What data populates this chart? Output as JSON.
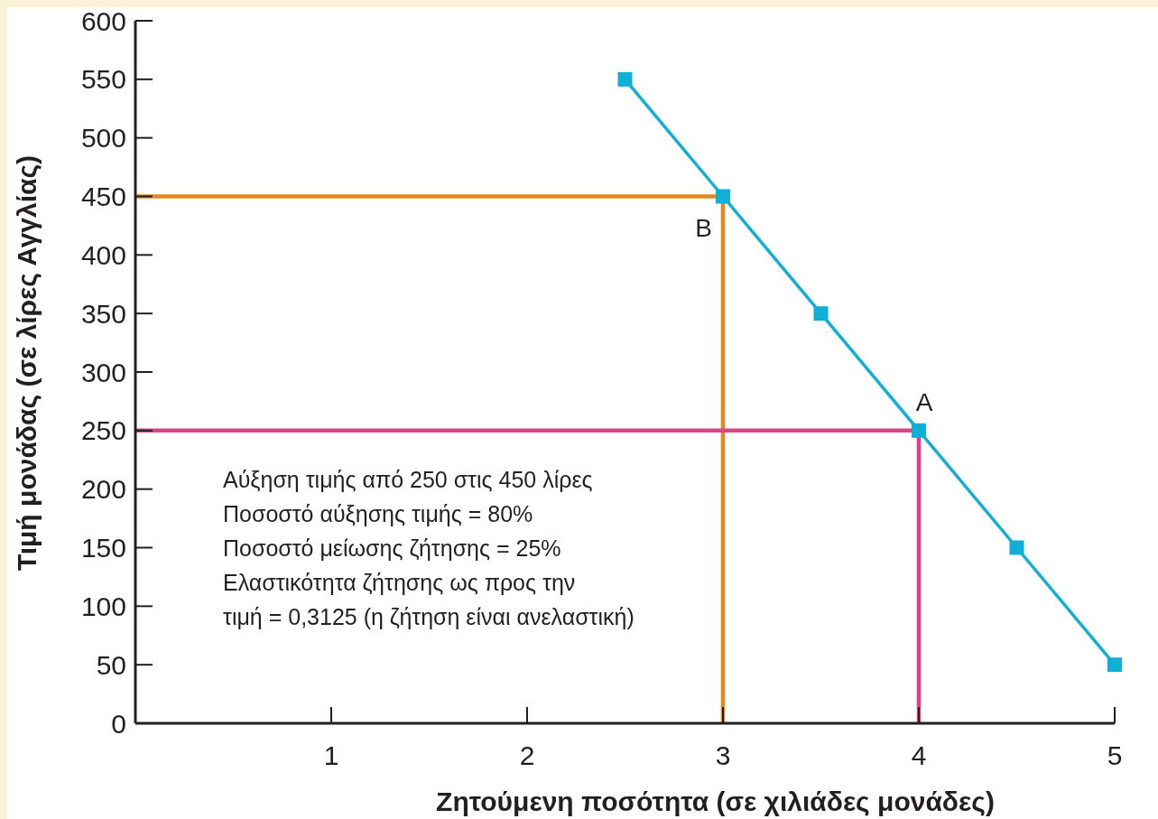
{
  "chart_data": {
    "type": "line",
    "xlabel": "Ζητούμενη ποσότητα (σε χιλιάδες μονάδες)",
    "ylabel": "Τιμή μονάδας (σε λίρες Αγγλίας)",
    "xlim": [
      0,
      5
    ],
    "ylim": [
      0,
      600
    ],
    "xticks": [
      1,
      2,
      3,
      4,
      5
    ],
    "yticks": [
      0,
      50,
      100,
      150,
      200,
      250,
      300,
      350,
      400,
      450,
      500,
      550,
      600
    ],
    "grid": false,
    "series": [
      {
        "x": [
          0,
          3,
          3
        ],
        "values": [
          450,
          450,
          0
        ],
        "color": "#e38a1e",
        "marker": "none"
      },
      {
        "x": [
          0,
          4,
          4
        ],
        "values": [
          250,
          250,
          0
        ],
        "color": "#db4384",
        "marker": "none"
      },
      {
        "x": [
          2.5,
          3,
          3.5,
          4,
          4.5,
          5
        ],
        "values": [
          550,
          450,
          350,
          250,
          150,
          50
        ],
        "color": "#0fafd6",
        "marker": "square"
      }
    ],
    "annotations": [
      {
        "text": "B",
        "x": 3,
        "y": 450
      },
      {
        "text": "A",
        "x": 4,
        "y": 250
      },
      "Αύξηση τιμής από 250 στις 450 λίρες",
      "Ποσοστό αύξησης τιμής = 80%",
      "Ποσοστό μείωσης ζήτησης = 25%",
      "Ελαστικότητα ζήτησης ως προς την",
      "τιμή = 0,3125 (η ζήτηση είναι ανελαστική)"
    ]
  }
}
